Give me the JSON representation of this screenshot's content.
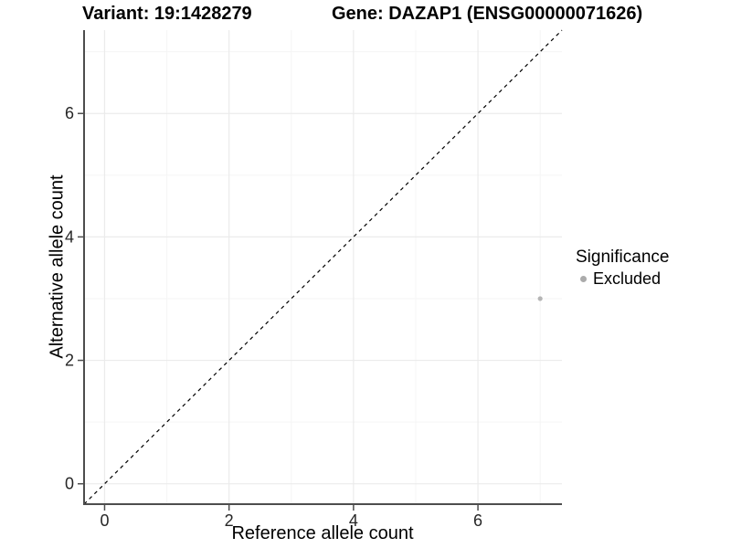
{
  "chart_data": {
    "type": "scatter",
    "titles": [
      "Variant: 19:1428279",
      "Gene: DAZAP1 (ENSG00000071626)"
    ],
    "xlabel": "Reference allele count",
    "ylabel": "Alternative allele count",
    "xlim": [
      -0.33,
      7.35
    ],
    "ylim": [
      -0.33,
      7.35
    ],
    "x_ticks": [
      0,
      2,
      4,
      6
    ],
    "y_ticks": [
      0,
      2,
      4,
      6
    ],
    "x_minor_gridlines": [
      1,
      3,
      5,
      7
    ],
    "y_minor_gridlines": [
      1,
      3,
      5,
      7
    ],
    "grid": true,
    "legend_position": "right",
    "reference_line": {
      "type": "identity",
      "slope": 1,
      "intercept": 0,
      "style": "dashed",
      "color": "#000000"
    },
    "series": [
      {
        "name": "Excluded",
        "color": "#b5b5b5",
        "points": [
          {
            "x": 7,
            "y": 3
          }
        ]
      }
    ],
    "legend": {
      "title": "Significance",
      "items": [
        {
          "label": "Excluded",
          "color": "#ababab"
        }
      ]
    },
    "colors": {
      "grid_major": "#ebebeb",
      "grid_minor": "#f5f5f5",
      "axis_line": "#4d4d4d",
      "tick_mark": "#4d4d4d",
      "tick_label": "#262626",
      "background": "#ffffff"
    }
  }
}
